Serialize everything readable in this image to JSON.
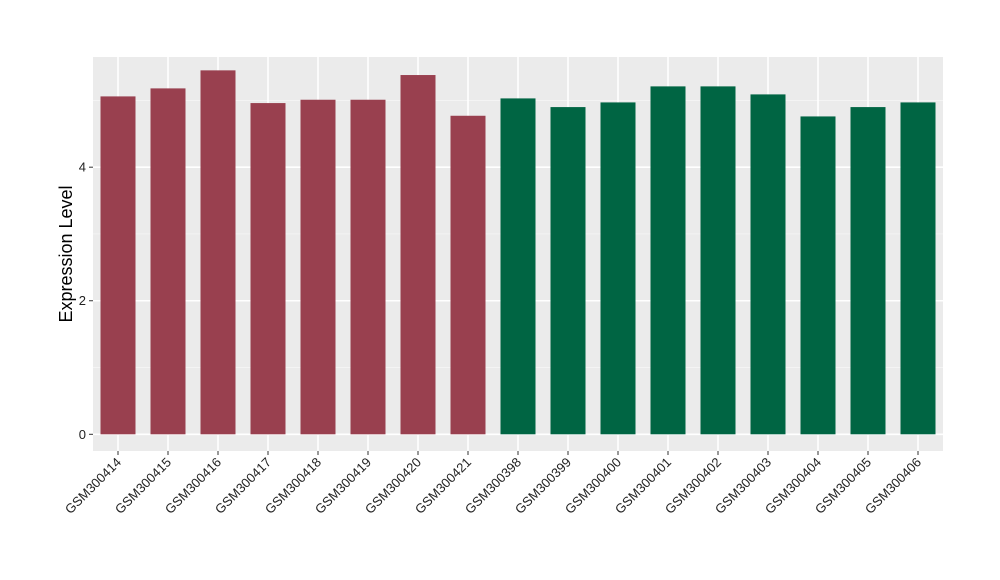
{
  "chart_data": {
    "type": "bar",
    "title": "",
    "xlabel": "",
    "ylabel": "Expression Level",
    "ylim": [
      -0.25,
      5.65
    ],
    "yticks": [
      0,
      2,
      4
    ],
    "grid": true,
    "background": "#ebebeb",
    "categories": [
      "GSM300414",
      "GSM300415",
      "GSM300416",
      "GSM300417",
      "GSM300418",
      "GSM300419",
      "GSM300420",
      "GSM300421",
      "GSM300398",
      "GSM300399",
      "GSM300400",
      "GSM300401",
      "GSM300402",
      "GSM300403",
      "GSM300404",
      "GSM300405",
      "GSM300406"
    ],
    "values": [
      5.06,
      5.18,
      5.45,
      4.96,
      5.01,
      5.01,
      5.38,
      4.77,
      5.03,
      4.9,
      4.97,
      5.21,
      5.21,
      5.09,
      4.76,
      4.9,
      4.97
    ],
    "colors": [
      "#99404f",
      "#99404f",
      "#99404f",
      "#99404f",
      "#99404f",
      "#99404f",
      "#99404f",
      "#99404f",
      "#006543",
      "#006543",
      "#006543",
      "#006543",
      "#006543",
      "#006543",
      "#006543",
      "#006543",
      "#006543"
    ]
  }
}
